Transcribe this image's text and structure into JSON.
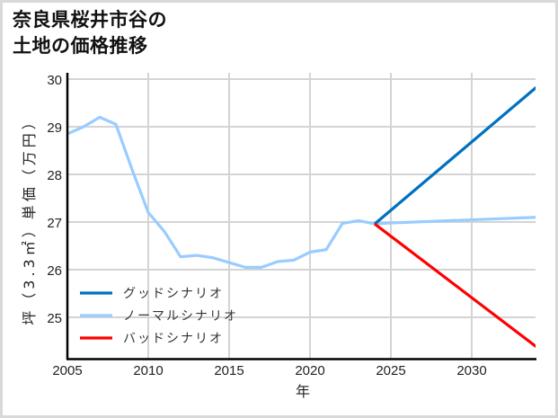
{
  "chart_data": {
    "type": "line",
    "title": "奈良県桜井市谷の土地の価格推移",
    "title_lines": [
      "奈良県桜井市谷の",
      "土地の価格推移"
    ],
    "xlabel": "年",
    "ylabel": "坪（3.3㎡）単価（万円）",
    "xlim": [
      2005,
      2034
    ],
    "ylim": [
      24.13,
      30
    ],
    "x_ticks": [
      2005,
      2010,
      2015,
      2020,
      2025,
      2030
    ],
    "y_ticks": [
      25,
      26,
      27,
      28,
      29,
      30
    ],
    "grid": true,
    "legend_position": "lower left",
    "series": [
      {
        "name": "グッドシナリオ",
        "color": "#0070c0",
        "x": [
          2024,
          2034
        ],
        "values": [
          26.96,
          29.83
        ]
      },
      {
        "name": "ノーマルシナリオ",
        "color": "#99ccff",
        "x": [
          2005,
          2006,
          2007,
          2008,
          2009,
          2010,
          2011,
          2012,
          2013,
          2014,
          2015,
          2016,
          2017,
          2018,
          2019,
          2020,
          2021,
          2022,
          2023,
          2024,
          2025,
          2034
        ],
        "values": [
          28.85,
          29.0,
          29.2,
          29.05,
          28.1,
          27.2,
          26.8,
          26.27,
          26.3,
          26.25,
          26.15,
          26.05,
          26.05,
          26.17,
          26.2,
          26.37,
          26.42,
          26.97,
          27.03,
          26.96,
          26.98,
          27.1
        ]
      },
      {
        "name": "バッドシナリオ",
        "color": "#ff0000",
        "x": [
          2024,
          2034
        ],
        "values": [
          26.96,
          24.38
        ]
      }
    ]
  }
}
